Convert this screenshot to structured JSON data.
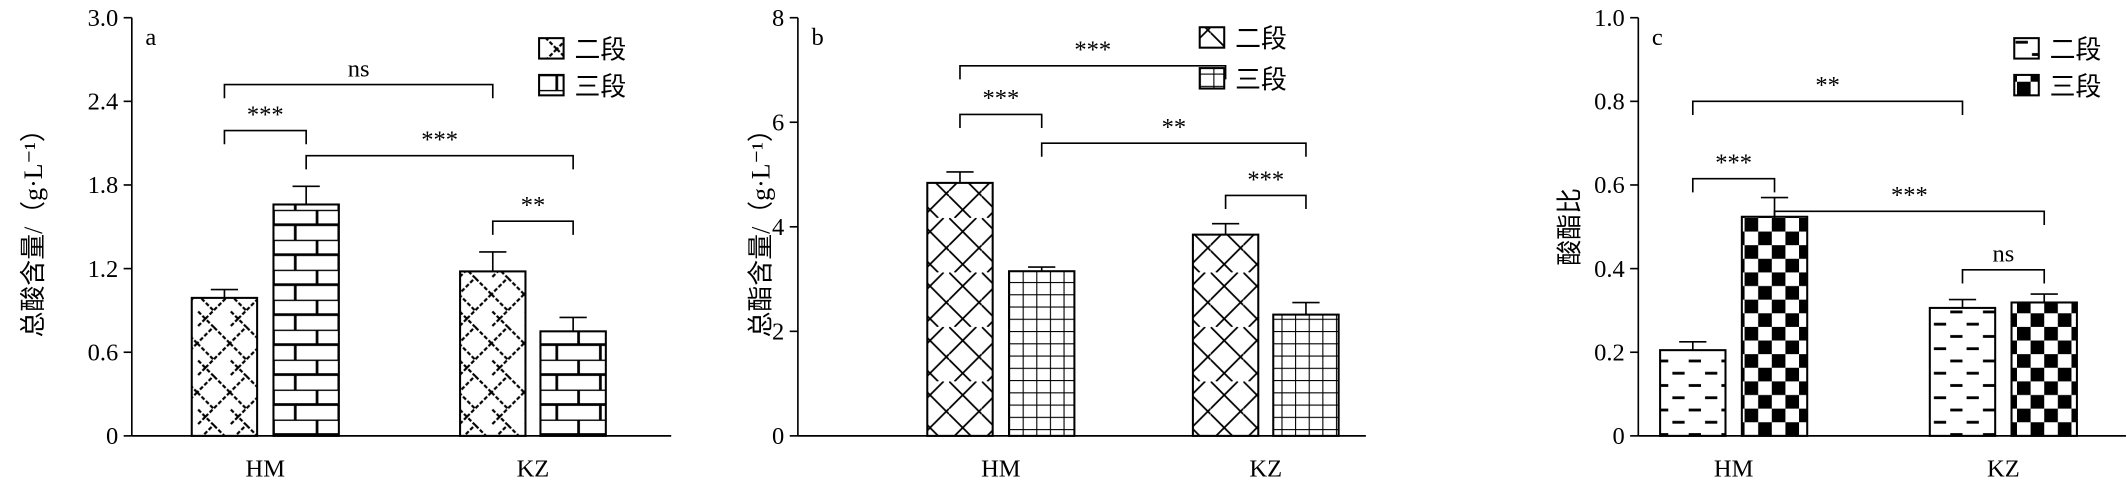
{
  "chart_data": [
    {
      "type": "bar",
      "panel_label": "a",
      "ylabel": "总酸含量/（g·L⁻¹）",
      "ylim": [
        0,
        3.0
      ],
      "yticks": [
        "0",
        "0.6",
        "1.2",
        "1.8",
        "2.4",
        "3.0"
      ],
      "yticks_values": [
        0,
        0.6,
        1.2,
        1.8,
        2.4,
        3.0
      ],
      "categories": [
        "HM",
        "KZ"
      ],
      "legend": [
        "二段",
        "三段"
      ],
      "legend_placement": "top-right",
      "series": [
        {
          "name": "二段",
          "values": [
            0.99,
            1.18
          ],
          "errors": [
            0.06,
            0.14
          ]
        },
        {
          "name": "三段",
          "values": [
            1.66,
            0.75
          ],
          "errors": [
            0.13,
            0.1
          ]
        }
      ],
      "significance": [
        {
          "from": [
            0,
            0
          ],
          "to": [
            1,
            0
          ],
          "label": "ns",
          "y": 2.52
        },
        {
          "from": [
            0,
            0
          ],
          "to": [
            0,
            1
          ],
          "label": "***",
          "y": 2.19
        },
        {
          "from": [
            0,
            1
          ],
          "to": [
            1,
            1
          ],
          "label": "***",
          "y": 2.01
        },
        {
          "from": [
            1,
            0
          ],
          "to": [
            1,
            1
          ],
          "label": "**",
          "y": 1.54
        }
      ]
    },
    {
      "type": "bar",
      "panel_label": "b",
      "ylabel": "总酯含量/（g·L⁻¹）",
      "ylim": [
        0,
        8
      ],
      "yticks": [
        "0",
        "2",
        "4",
        "6",
        "8"
      ],
      "yticks_values": [
        0,
        2,
        4,
        6,
        8
      ],
      "categories": [
        "HM",
        "KZ"
      ],
      "legend": [
        "二段",
        "三段"
      ],
      "legend_placement": "top-right",
      "series": [
        {
          "name": "二段",
          "values": [
            4.84,
            3.85
          ],
          "errors": [
            0.21,
            0.21
          ]
        },
        {
          "name": "三段",
          "values": [
            3.15,
            2.32
          ],
          "errors": [
            0.08,
            0.23
          ]
        }
      ],
      "significance": [
        {
          "from": [
            0,
            0
          ],
          "to": [
            1,
            0
          ],
          "label": "***",
          "y": 7.08
        },
        {
          "from": [
            0,
            0
          ],
          "to": [
            0,
            1
          ],
          "label": "***",
          "y": 6.15
        },
        {
          "from": [
            0,
            1
          ],
          "to": [
            1,
            1
          ],
          "label": "**",
          "y": 5.6
        },
        {
          "from": [
            1,
            0
          ],
          "to": [
            1,
            1
          ],
          "label": "***",
          "y": 4.6
        }
      ]
    },
    {
      "type": "bar",
      "panel_label": "c",
      "ylabel": "酸酯比",
      "ylim": [
        0,
        1.0
      ],
      "yticks": [
        "0",
        "0.2",
        "0.4",
        "0.6",
        "0.8",
        "1.0"
      ],
      "yticks_values": [
        0,
        0.2,
        0.4,
        0.6,
        0.8,
        1.0
      ],
      "categories": [
        "HM",
        "KZ"
      ],
      "legend": [
        "二段",
        "三段"
      ],
      "legend_placement": "top-right",
      "series": [
        {
          "name": "二段",
          "values": [
            0.205,
            0.306
          ],
          "errors": [
            0.02,
            0.02
          ]
        },
        {
          "name": "三段",
          "values": [
            0.524,
            0.319
          ],
          "errors": [
            0.046,
            0.02
          ]
        }
      ],
      "significance": [
        {
          "from": [
            0,
            0
          ],
          "to": [
            1,
            0
          ],
          "label": "**",
          "y": 0.8
        },
        {
          "from": [
            0,
            0
          ],
          "to": [
            0,
            1
          ],
          "label": "***",
          "y": 0.615
        },
        {
          "from": [
            0,
            1
          ],
          "to": [
            1,
            1
          ],
          "label": "***",
          "y": 0.537
        },
        {
          "from": [
            1,
            0
          ],
          "to": [
            1,
            1
          ],
          "label": "ns",
          "y": 0.397
        }
      ]
    }
  ]
}
